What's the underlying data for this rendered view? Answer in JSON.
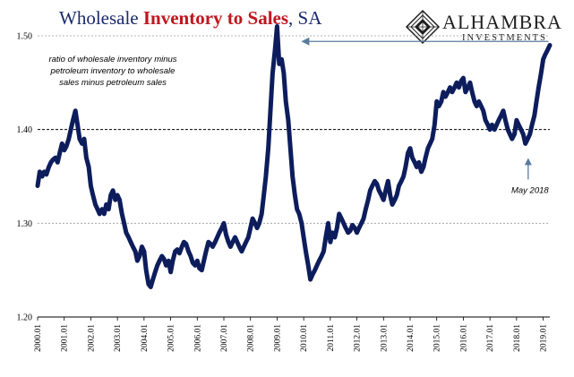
{
  "title": {
    "part1": "Wholesale ",
    "part2": "Inventory to Sales",
    "part3": ", SA"
  },
  "brand": {
    "name": "ALHAMBRA",
    "sub": "INVESTMENTS"
  },
  "chart_data": {
    "type": "line",
    "title": "Wholesale Inventory to Sales, SA",
    "subtitle": "ratio of wholesale inventory minus petroleum inventory to wholesale sales minus petroleum sales",
    "subtitle_lines": [
      "ratio of wholesale inventory minus",
      "petroleum inventory to wholesale",
      "sales minus petroleum sales"
    ],
    "xlabel": "",
    "ylabel": "",
    "ylim": [
      1.2,
      1.5
    ],
    "yticks": [
      "1.20",
      "1.30",
      "1.40",
      "1.50"
    ],
    "reference_line": 1.4,
    "x_range": [
      2000.0,
      2019.25
    ],
    "xticks": [
      "2000.01",
      "2001.01",
      "2002.01",
      "2003.01",
      "2004.01",
      "2005.01",
      "2006.01",
      "2007.01",
      "2008.01",
      "2009.01",
      "2010.01",
      "2011.01",
      "2012.01",
      "2013.01",
      "2014.01",
      "2015.01",
      "2016.01",
      "2017.01",
      "2018.01",
      "2019.01"
    ],
    "annotations": [
      {
        "text": "May 2018",
        "x": 2018.37,
        "y": 1.385
      },
      {
        "text": "",
        "x": 2009.1,
        "y": 1.494
      }
    ],
    "series_color": "#0d1d5c",
    "points": [
      [
        2000.0,
        1.34
      ],
      [
        2000.08,
        1.355
      ],
      [
        2000.17,
        1.35
      ],
      [
        2000.25,
        1.355
      ],
      [
        2000.33,
        1.352
      ],
      [
        2000.42,
        1.36
      ],
      [
        2000.5,
        1.365
      ],
      [
        2000.58,
        1.368
      ],
      [
        2000.67,
        1.37
      ],
      [
        2000.75,
        1.365
      ],
      [
        2000.83,
        1.375
      ],
      [
        2000.92,
        1.385
      ],
      [
        2001.0,
        1.378
      ],
      [
        2001.08,
        1.382
      ],
      [
        2001.17,
        1.39
      ],
      [
        2001.25,
        1.4
      ],
      [
        2001.33,
        1.41
      ],
      [
        2001.42,
        1.42
      ],
      [
        2001.5,
        1.405
      ],
      [
        2001.58,
        1.39
      ],
      [
        2001.67,
        1.385
      ],
      [
        2001.75,
        1.39
      ],
      [
        2001.83,
        1.37
      ],
      [
        2001.92,
        1.36
      ],
      [
        2002.0,
        1.34
      ],
      [
        2002.08,
        1.33
      ],
      [
        2002.17,
        1.32
      ],
      [
        2002.25,
        1.315
      ],
      [
        2002.33,
        1.31
      ],
      [
        2002.42,
        1.315
      ],
      [
        2002.5,
        1.31
      ],
      [
        2002.58,
        1.32
      ],
      [
        2002.67,
        1.315
      ],
      [
        2002.75,
        1.33
      ],
      [
        2002.83,
        1.335
      ],
      [
        2002.92,
        1.325
      ],
      [
        2003.0,
        1.33
      ],
      [
        2003.08,
        1.325
      ],
      [
        2003.17,
        1.31
      ],
      [
        2003.25,
        1.3
      ],
      [
        2003.33,
        1.29
      ],
      [
        2003.42,
        1.285
      ],
      [
        2003.5,
        1.28
      ],
      [
        2003.58,
        1.275
      ],
      [
        2003.67,
        1.27
      ],
      [
        2003.75,
        1.26
      ],
      [
        2003.83,
        1.265
      ],
      [
        2003.92,
        1.275
      ],
      [
        2004.0,
        1.27
      ],
      [
        2004.08,
        1.25
      ],
      [
        2004.17,
        1.235
      ],
      [
        2004.25,
        1.232
      ],
      [
        2004.33,
        1.24
      ],
      [
        2004.42,
        1.248
      ],
      [
        2004.5,
        1.255
      ],
      [
        2004.58,
        1.26
      ],
      [
        2004.67,
        1.265
      ],
      [
        2004.75,
        1.262
      ],
      [
        2004.83,
        1.255
      ],
      [
        2004.92,
        1.26
      ],
      [
        2005.0,
        1.248
      ],
      [
        2005.08,
        1.26
      ],
      [
        2005.17,
        1.27
      ],
      [
        2005.25,
        1.272
      ],
      [
        2005.33,
        1.268
      ],
      [
        2005.42,
        1.275
      ],
      [
        2005.5,
        1.28
      ],
      [
        2005.58,
        1.278
      ],
      [
        2005.67,
        1.27
      ],
      [
        2005.75,
        1.265
      ],
      [
        2005.83,
        1.258
      ],
      [
        2005.92,
        1.255
      ],
      [
        2006.0,
        1.26
      ],
      [
        2006.08,
        1.252
      ],
      [
        2006.17,
        1.25
      ],
      [
        2006.25,
        1.26
      ],
      [
        2006.33,
        1.27
      ],
      [
        2006.42,
        1.28
      ],
      [
        2006.5,
        1.278
      ],
      [
        2006.58,
        1.275
      ],
      [
        2006.67,
        1.28
      ],
      [
        2006.75,
        1.285
      ],
      [
        2006.83,
        1.29
      ],
      [
        2006.92,
        1.295
      ],
      [
        2007.0,
        1.3
      ],
      [
        2007.08,
        1.288
      ],
      [
        2007.17,
        1.28
      ],
      [
        2007.25,
        1.275
      ],
      [
        2007.33,
        1.28
      ],
      [
        2007.42,
        1.285
      ],
      [
        2007.5,
        1.28
      ],
      [
        2007.58,
        1.275
      ],
      [
        2007.67,
        1.27
      ],
      [
        2007.75,
        1.275
      ],
      [
        2007.83,
        1.28
      ],
      [
        2007.92,
        1.285
      ],
      [
        2008.0,
        1.295
      ],
      [
        2008.08,
        1.305
      ],
      [
        2008.17,
        1.3
      ],
      [
        2008.25,
        1.295
      ],
      [
        2008.33,
        1.3
      ],
      [
        2008.42,
        1.31
      ],
      [
        2008.5,
        1.33
      ],
      [
        2008.58,
        1.35
      ],
      [
        2008.67,
        1.38
      ],
      [
        2008.75,
        1.42
      ],
      [
        2008.83,
        1.46
      ],
      [
        2008.92,
        1.485
      ],
      [
        2009.0,
        1.51
      ],
      [
        2009.08,
        1.47
      ],
      [
        2009.17,
        1.475
      ],
      [
        2009.25,
        1.46
      ],
      [
        2009.33,
        1.43
      ],
      [
        2009.42,
        1.41
      ],
      [
        2009.5,
        1.38
      ],
      [
        2009.58,
        1.35
      ],
      [
        2009.67,
        1.33
      ],
      [
        2009.75,
        1.315
      ],
      [
        2009.83,
        1.31
      ],
      [
        2009.92,
        1.3
      ],
      [
        2010.0,
        1.285
      ],
      [
        2010.08,
        1.27
      ],
      [
        2010.17,
        1.255
      ],
      [
        2010.25,
        1.24
      ],
      [
        2010.33,
        1.245
      ],
      [
        2010.42,
        1.25
      ],
      [
        2010.5,
        1.255
      ],
      [
        2010.58,
        1.26
      ],
      [
        2010.67,
        1.265
      ],
      [
        2010.75,
        1.27
      ],
      [
        2010.83,
        1.285
      ],
      [
        2010.92,
        1.3
      ],
      [
        2011.0,
        1.28
      ],
      [
        2011.08,
        1.29
      ],
      [
        2011.17,
        1.285
      ],
      [
        2011.25,
        1.295
      ],
      [
        2011.33,
        1.31
      ],
      [
        2011.42,
        1.305
      ],
      [
        2011.5,
        1.3
      ],
      [
        2011.58,
        1.295
      ],
      [
        2011.67,
        1.29
      ],
      [
        2011.75,
        1.292
      ],
      [
        2011.83,
        1.298
      ],
      [
        2011.92,
        1.295
      ],
      [
        2012.0,
        1.29
      ],
      [
        2012.08,
        1.295
      ],
      [
        2012.17,
        1.3
      ],
      [
        2012.25,
        1.305
      ],
      [
        2012.33,
        1.315
      ],
      [
        2012.42,
        1.325
      ],
      [
        2012.5,
        1.335
      ],
      [
        2012.58,
        1.34
      ],
      [
        2012.67,
        1.345
      ],
      [
        2012.75,
        1.342
      ],
      [
        2012.83,
        1.335
      ],
      [
        2012.92,
        1.33
      ],
      [
        2013.0,
        1.325
      ],
      [
        2013.08,
        1.335
      ],
      [
        2013.17,
        1.345
      ],
      [
        2013.25,
        1.33
      ],
      [
        2013.33,
        1.32
      ],
      [
        2013.42,
        1.325
      ],
      [
        2013.5,
        1.33
      ],
      [
        2013.58,
        1.34
      ],
      [
        2013.67,
        1.345
      ],
      [
        2013.75,
        1.35
      ],
      [
        2013.83,
        1.36
      ],
      [
        2013.92,
        1.375
      ],
      [
        2014.0,
        1.38
      ],
      [
        2014.08,
        1.37
      ],
      [
        2014.17,
        1.365
      ],
      [
        2014.25,
        1.36
      ],
      [
        2014.33,
        1.365
      ],
      [
        2014.42,
        1.355
      ],
      [
        2014.5,
        1.36
      ],
      [
        2014.58,
        1.37
      ],
      [
        2014.67,
        1.38
      ],
      [
        2014.75,
        1.385
      ],
      [
        2014.83,
        1.39
      ],
      [
        2014.92,
        1.405
      ],
      [
        2015.0,
        1.43
      ],
      [
        2015.08,
        1.425
      ],
      [
        2015.17,
        1.43
      ],
      [
        2015.25,
        1.44
      ],
      [
        2015.33,
        1.435
      ],
      [
        2015.42,
        1.44
      ],
      [
        2015.5,
        1.445
      ],
      [
        2015.58,
        1.44
      ],
      [
        2015.67,
        1.445
      ],
      [
        2015.75,
        1.45
      ],
      [
        2015.83,
        1.445
      ],
      [
        2015.92,
        1.452
      ],
      [
        2016.0,
        1.455
      ],
      [
        2016.08,
        1.44
      ],
      [
        2016.17,
        1.445
      ],
      [
        2016.25,
        1.45
      ],
      [
        2016.33,
        1.44
      ],
      [
        2016.42,
        1.43
      ],
      [
        2016.5,
        1.425
      ],
      [
        2016.58,
        1.43
      ],
      [
        2016.67,
        1.425
      ],
      [
        2016.75,
        1.42
      ],
      [
        2016.83,
        1.41
      ],
      [
        2016.92,
        1.405
      ],
      [
        2017.0,
        1.4
      ],
      [
        2017.08,
        1.405
      ],
      [
        2017.17,
        1.4
      ],
      [
        2017.25,
        1.405
      ],
      [
        2017.33,
        1.41
      ],
      [
        2017.42,
        1.415
      ],
      [
        2017.5,
        1.42
      ],
      [
        2017.58,
        1.41
      ],
      [
        2017.67,
        1.4
      ],
      [
        2017.75,
        1.395
      ],
      [
        2017.83,
        1.39
      ],
      [
        2017.92,
        1.395
      ],
      [
        2018.0,
        1.41
      ],
      [
        2018.08,
        1.405
      ],
      [
        2018.17,
        1.4
      ],
      [
        2018.25,
        1.395
      ],
      [
        2018.33,
        1.385
      ],
      [
        2018.42,
        1.39
      ],
      [
        2018.5,
        1.395
      ],
      [
        2018.58,
        1.405
      ],
      [
        2018.67,
        1.415
      ],
      [
        2018.75,
        1.43
      ],
      [
        2018.83,
        1.445
      ],
      [
        2018.92,
        1.46
      ],
      [
        2019.0,
        1.475
      ],
      [
        2019.08,
        1.48
      ],
      [
        2019.17,
        1.485
      ],
      [
        2019.25,
        1.49
      ]
    ]
  }
}
